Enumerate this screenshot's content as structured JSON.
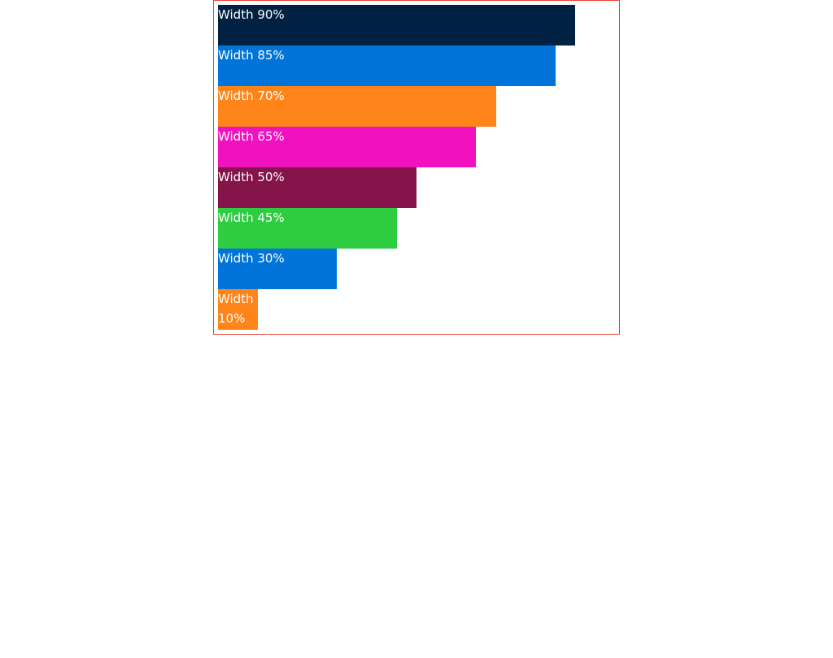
{
  "bars": [
    {
      "label": "Width 90%",
      "width_percent": 90,
      "color": "#002142"
    },
    {
      "label": "Width 85%",
      "width_percent": 85,
      "color": "#0074D9"
    },
    {
      "label": "Width 70%",
      "width_percent": 70,
      "color": "#FF851B"
    },
    {
      "label": "Width 65%",
      "width_percent": 65,
      "color": "#F012BE"
    },
    {
      "label": "Width 50%",
      "width_percent": 50,
      "color": "#85144B"
    },
    {
      "label": "Width 45%",
      "width_percent": 45,
      "color": "#2ECC40"
    },
    {
      "label": "Width 30%",
      "width_percent": 30,
      "color": "#0074D9"
    },
    {
      "label": "Width 10%",
      "width_percent": 10,
      "color": "#FF851B"
    }
  ],
  "colors": {
    "frame_border": "#e8433a",
    "label_text": "#ffffff"
  }
}
